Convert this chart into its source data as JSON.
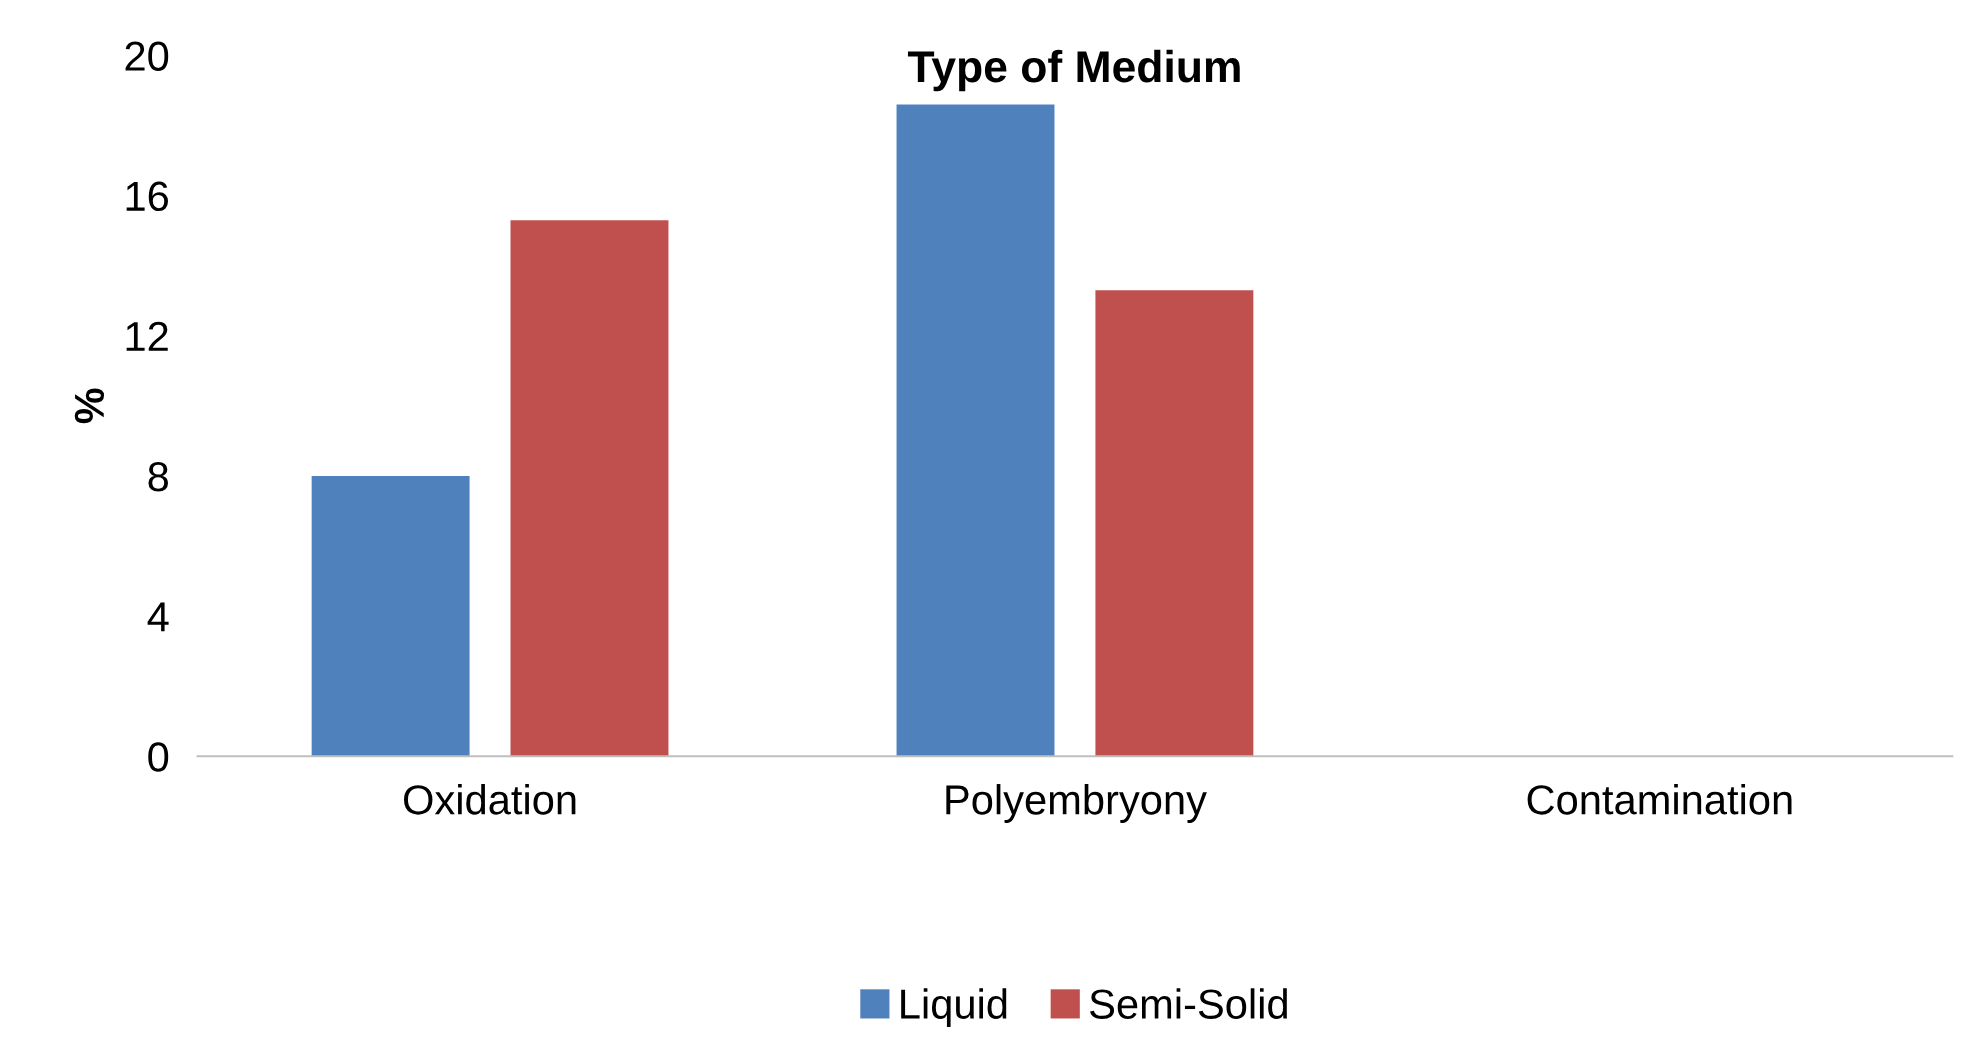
{
  "chart_data": {
    "type": "bar",
    "title": "Type of Medium",
    "ylabel": "%",
    "categories": [
      "Oxidation",
      "Polyembryony",
      "Contamination"
    ],
    "series": [
      {
        "name": "Liquid",
        "color": "#4f81bd",
        "values": [
          8.0,
          18.6,
          0
        ]
      },
      {
        "name": "Semi-Solid",
        "color": "#c0504d",
        "values": [
          15.3,
          13.3,
          0
        ]
      }
    ],
    "ylim": [
      0,
      20
    ],
    "yticks": [
      0,
      4,
      8,
      12,
      16,
      20
    ],
    "grid": false,
    "legend": "bottom"
  }
}
